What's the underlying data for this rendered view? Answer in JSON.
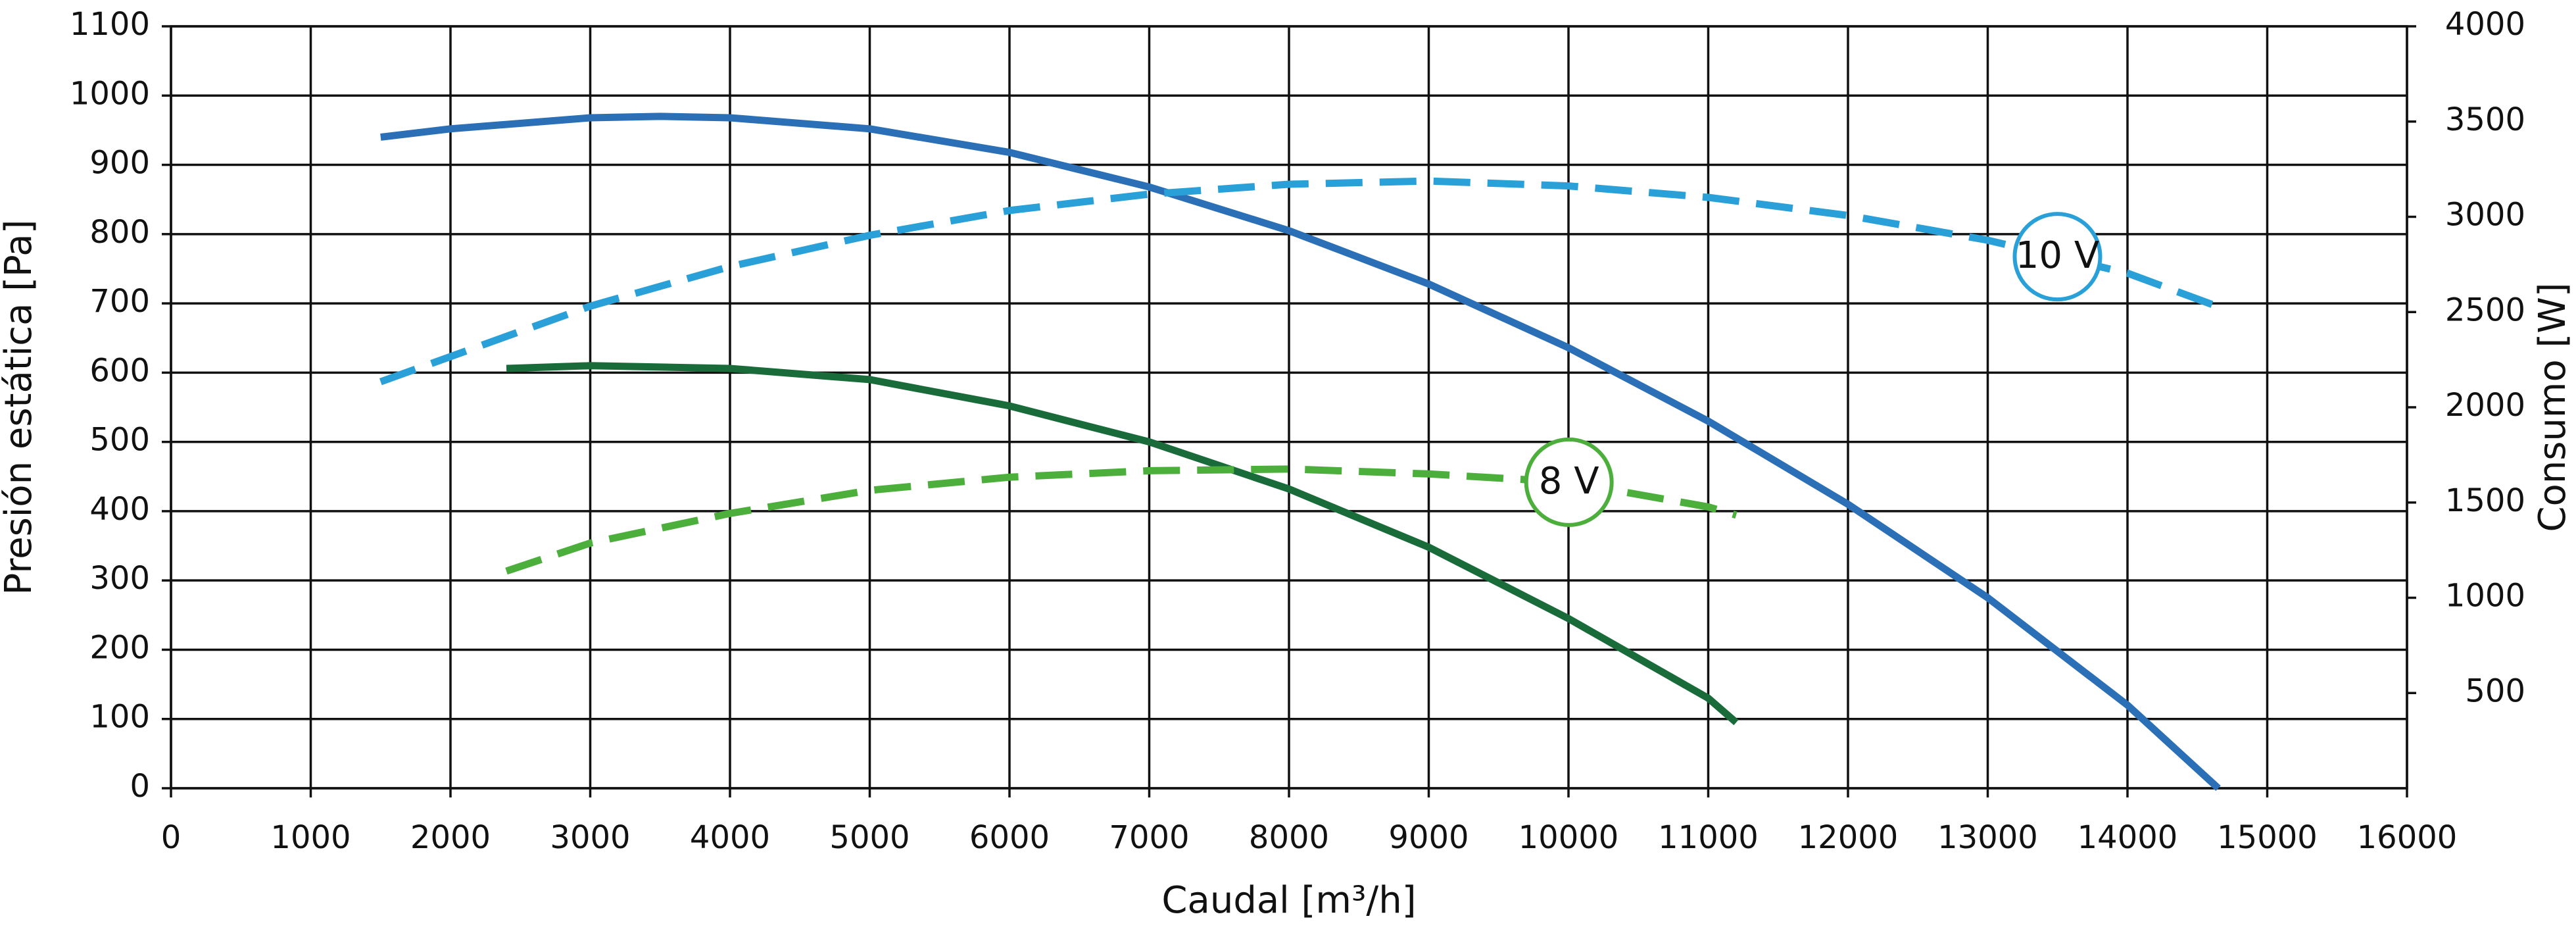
{
  "chart_data": {
    "type": "line",
    "xlabel": "Caudal [m³/h]",
    "ylabel": "Presión estática [Pa]",
    "y2label": "Consumo [W]",
    "xlim": [
      0,
      16000
    ],
    "xticks": [
      0,
      1000,
      2000,
      3000,
      4000,
      5000,
      6000,
      7000,
      8000,
      9000,
      10000,
      11000,
      12000,
      13000,
      14000,
      15000,
      16000
    ],
    "ylim": [
      0,
      1100
    ],
    "yticks": [
      0,
      100,
      200,
      300,
      400,
      500,
      600,
      700,
      800,
      900,
      1000,
      1100
    ],
    "y2lim": [
      0,
      4000
    ],
    "y2ticks": [
      500,
      1000,
      1500,
      2000,
      2500,
      3000,
      3500,
      4000
    ],
    "grid": true,
    "series": [
      {
        "color": "#2b6fb6",
        "dash": false,
        "x": [
          1500,
          2000,
          3000,
          3500,
          4000,
          5000,
          6000,
          7000,
          8000,
          9000,
          10000,
          11000,
          12000,
          13000,
          14000,
          14650
        ],
        "values": [
          940,
          952,
          968,
          970,
          968,
          952,
          918,
          868,
          805,
          728,
          636,
          530,
          410,
          275,
          120,
          0
        ]
      },
      {
        "name": "10 V",
        "color": "#2aa0d8",
        "dash": true,
        "axis": "y2",
        "x": [
          1500,
          3000,
          4000,
          5000,
          6000,
          7000,
          8000,
          9000,
          10000,
          11000,
          12000,
          13000,
          14000,
          14700
        ],
        "values": [
          2134,
          2531,
          2739,
          2903,
          3033,
          3119,
          3171,
          3188,
          3162,
          3102,
          3007,
          2877,
          2704,
          2514
        ]
      },
      {
        "color": "#1a6b3a",
        "dash": false,
        "x": [
          2400,
          3000,
          4000,
          5000,
          6000,
          7000,
          8000,
          9000,
          10000,
          11000,
          11200
        ],
        "values": [
          606,
          610,
          606,
          590,
          552,
          500,
          432,
          348,
          245,
          130,
          95
        ]
      },
      {
        "name": "8 V",
        "color": "#4caf3c",
        "dash": true,
        "axis": "y2",
        "x": [
          2400,
          3000,
          4000,
          5000,
          6000,
          7000,
          8000,
          9000,
          10000,
          11000,
          11200
        ],
        "values": [
          1140,
          1287,
          1443,
          1564,
          1633,
          1667,
          1676,
          1650,
          1607,
          1477,
          1434
        ]
      }
    ]
  }
}
